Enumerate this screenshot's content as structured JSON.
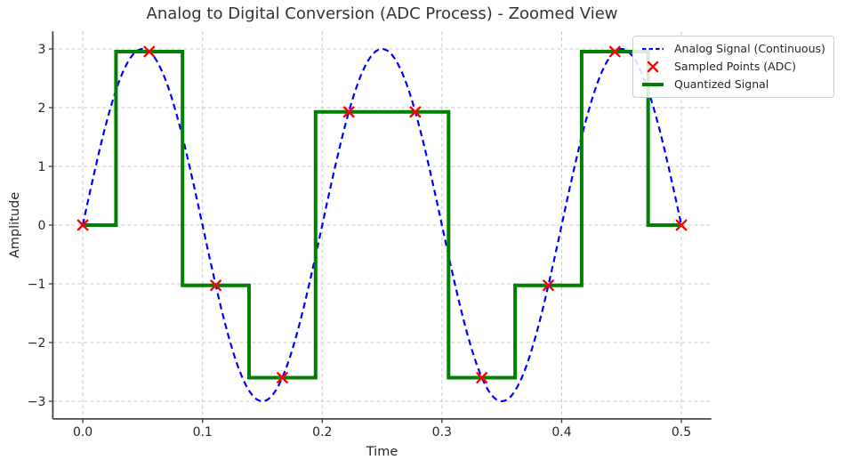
{
  "chart_data": {
    "type": "line",
    "title": "Analog to Digital Conversion (ADC Process) - Zoomed View",
    "xlabel": "Time",
    "ylabel": "Amplitude",
    "xlim": [
      -0.025,
      0.525
    ],
    "ylim": [
      -3.3,
      3.3
    ],
    "xticks": {
      "values": [
        0,
        0.1,
        0.2,
        0.3,
        0.4,
        0.5
      ],
      "labels": [
        "0.0",
        "0.1",
        "0.2",
        "0.3",
        "0.4",
        "0.5"
      ]
    },
    "yticks": {
      "values": [
        -3,
        -2,
        -1,
        0,
        1,
        2,
        3
      ],
      "labels": [
        "−3",
        "−2",
        "−1",
        "0",
        "1",
        "2",
        "3"
      ]
    },
    "grid": {
      "visible": true,
      "linestyle": "dashed",
      "color": "#c9c9c9"
    },
    "axis": {
      "spine_color": "#3a3a3a",
      "tick_label_color": "#262626"
    },
    "series": [
      {
        "name": "Analog Signal (Continuous)",
        "type": "sine",
        "amplitude": 3,
        "frequency_hz": 5,
        "t_start": 0,
        "t_end": 0.5,
        "color": "#0000ff",
        "linestyle": "dashed",
        "linewidth": 2.2
      },
      {
        "name": "Sampled Points (ADC)",
        "type": "scatter",
        "marker": "x",
        "color": "#ff0000",
        "t": [
          0,
          0.05556,
          0.11111,
          0.16667,
          0.22222,
          0.27778,
          0.33333,
          0.38889,
          0.44444,
          0.5
        ],
        "values": [
          0,
          2.954,
          -1.026,
          -2.598,
          1.928,
          1.928,
          -2.598,
          -1.026,
          2.954,
          0
        ]
      },
      {
        "name": "Quantized Signal",
        "type": "step-mid",
        "color": "#008000",
        "linewidth": 4,
        "t": [
          0,
          0.05556,
          0.11111,
          0.16667,
          0.22222,
          0.27778,
          0.33333,
          0.38889,
          0.44444,
          0.5
        ],
        "values": [
          0,
          2.954,
          -1.026,
          -2.598,
          1.928,
          1.928,
          -2.598,
          -1.026,
          2.954,
          0
        ]
      }
    ],
    "legend": {
      "position": "upper-right",
      "border_color": "#cccccc",
      "background": "rgba(255,255,255,0.85)"
    }
  }
}
